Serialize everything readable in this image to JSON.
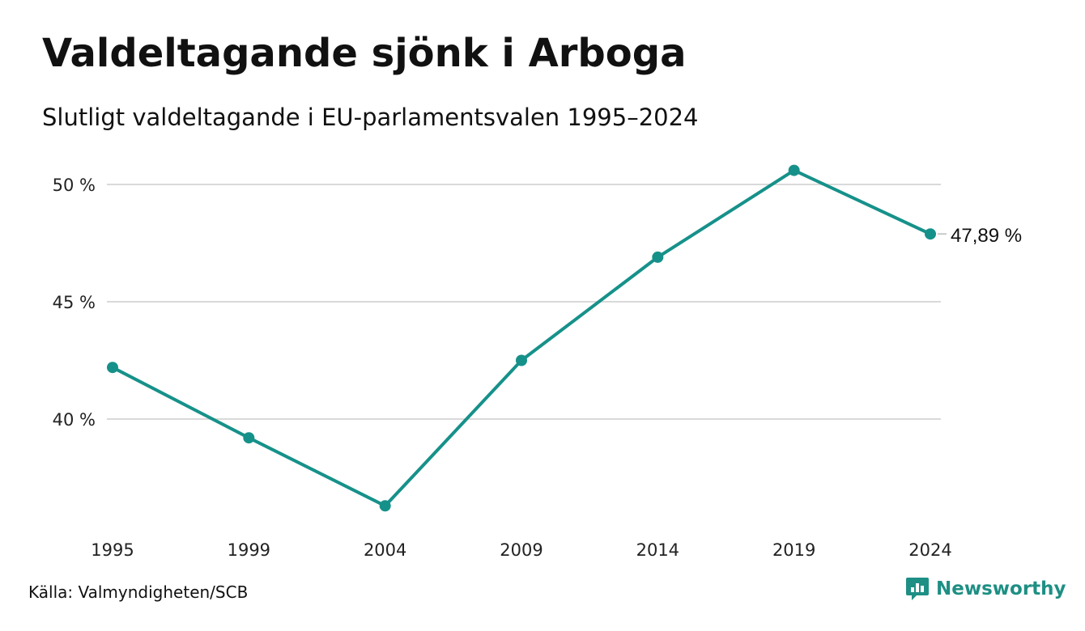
{
  "header": {
    "title": "Valdeltagande sjönk i Arboga",
    "subtitle": "Slutligt valdeltagande i EU-parlamentsvalen 1995–2024"
  },
  "footer": {
    "source": "Källa: Valmyndigheten/SCB",
    "brand": "Newsworthy",
    "brand_icon": "bar-chart-speech-bubble-icon"
  },
  "colors": {
    "line": "#16918a",
    "grid": "#d9d9d9",
    "brand": "#1e8f84"
  },
  "chart_data": {
    "type": "line",
    "categories": [
      "1995",
      "1999",
      "2004",
      "2009",
      "2014",
      "2019",
      "2024"
    ],
    "series": [
      {
        "values": [
          42.2,
          39.2,
          36.3,
          42.5,
          46.9,
          50.6,
          47.89
        ]
      }
    ],
    "y_ticks": [
      {
        "value": 40,
        "label": "40 %"
      },
      {
        "value": 45,
        "label": "45 %"
      },
      {
        "value": 50,
        "label": "50 %"
      }
    ],
    "end_label": "47,89 %",
    "ylim": [
      34.8,
      52.5
    ],
    "grid": true,
    "legend": "none"
  }
}
